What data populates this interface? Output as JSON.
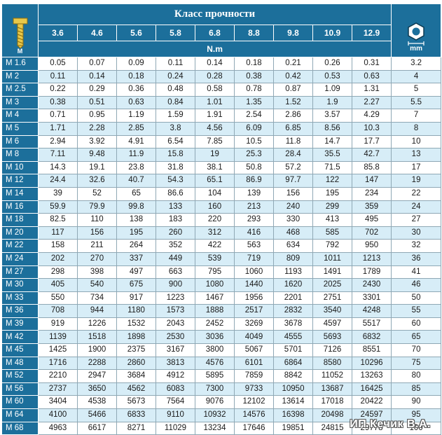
{
  "header": {
    "title": "Класс прочности",
    "unit": "N.m",
    "bolt_label": "M",
    "hex_label": "mm",
    "grades": [
      "3.6",
      "4.6",
      "5.6",
      "5.8",
      "6.8",
      "8.8",
      "9.8",
      "10.9",
      "12.9"
    ]
  },
  "rows": [
    {
      "size": "M 1.6",
      "values": [
        "0.05",
        "0.07",
        "0.09",
        "0.11",
        "0.14",
        "0.18",
        "0.21",
        "0.26",
        "0.31"
      ],
      "key": "3.2"
    },
    {
      "size": "M 2",
      "values": [
        "0.11",
        "0.14",
        "0.18",
        "0.24",
        "0.28",
        "0.38",
        "0.42",
        "0.53",
        "0.63"
      ],
      "key": "4"
    },
    {
      "size": "M 2.5",
      "values": [
        "0.22",
        "0.29",
        "0.36",
        "0.48",
        "0.58",
        "0.78",
        "0.87",
        "1.09",
        "1.31"
      ],
      "key": "5"
    },
    {
      "size": "M 3",
      "values": [
        "0.38",
        "0.51",
        "0.63",
        "0.84",
        "1.01",
        "1.35",
        "1.52",
        "1.9",
        "2.27"
      ],
      "key": "5.5"
    },
    {
      "size": "M 4",
      "values": [
        "0.71",
        "0.95",
        "1.19",
        "1.59",
        "1.91",
        "2.54",
        "2.86",
        "3.57",
        "4.29"
      ],
      "key": "7"
    },
    {
      "size": "M 5",
      "values": [
        "1.71",
        "2.28",
        "2.85",
        "3.8",
        "4.56",
        "6.09",
        "6.85",
        "8.56",
        "10.3"
      ],
      "key": "8"
    },
    {
      "size": "M 6",
      "values": [
        "2.94",
        "3.92",
        "4.91",
        "6.54",
        "7.85",
        "10.5",
        "11.8",
        "14.7",
        "17.7"
      ],
      "key": "10"
    },
    {
      "size": "M 8",
      "values": [
        "7.11",
        "9.48",
        "11.9",
        "15.8",
        "19",
        "25.3",
        "28.4",
        "35.5",
        "42.7"
      ],
      "key": "13"
    },
    {
      "size": "M 10",
      "values": [
        "14.3",
        "19.1",
        "23.8",
        "31.8",
        "38.1",
        "50.8",
        "57.2",
        "71.5",
        "85.8"
      ],
      "key": "17"
    },
    {
      "size": "M 12",
      "values": [
        "24.4",
        "32.6",
        "40.7",
        "54.3",
        "65.1",
        "86.9",
        "97.7",
        "122",
        "147"
      ],
      "key": "19"
    },
    {
      "size": "M 14",
      "values": [
        "39",
        "52",
        "65",
        "86.6",
        "104",
        "139",
        "156",
        "195",
        "234"
      ],
      "key": "22"
    },
    {
      "size": "M 16",
      "values": [
        "59.9",
        "79.9",
        "99.8",
        "133",
        "160",
        "213",
        "240",
        "299",
        "359"
      ],
      "key": "24"
    },
    {
      "size": "M 18",
      "values": [
        "82.5",
        "110",
        "138",
        "183",
        "220",
        "293",
        "330",
        "413",
        "495"
      ],
      "key": "27"
    },
    {
      "size": "M 20",
      "values": [
        "117",
        "156",
        "195",
        "260",
        "312",
        "416",
        "468",
        "585",
        "702"
      ],
      "key": "30"
    },
    {
      "size": "M 22",
      "values": [
        "158",
        "211",
        "264",
        "352",
        "422",
        "563",
        "634",
        "792",
        "950"
      ],
      "key": "32"
    },
    {
      "size": "M 24",
      "values": [
        "202",
        "270",
        "337",
        "449",
        "539",
        "719",
        "809",
        "1011",
        "1213"
      ],
      "key": "36"
    },
    {
      "size": "M 27",
      "values": [
        "298",
        "398",
        "497",
        "663",
        "795",
        "1060",
        "1193",
        "1491",
        "1789"
      ],
      "key": "41"
    },
    {
      "size": "M 30",
      "values": [
        "405",
        "540",
        "675",
        "900",
        "1080",
        "1440",
        "1620",
        "2025",
        "2430"
      ],
      "key": "46"
    },
    {
      "size": "M 33",
      "values": [
        "550",
        "734",
        "917",
        "1223",
        "1467",
        "1956",
        "2201",
        "2751",
        "3301"
      ],
      "key": "50"
    },
    {
      "size": "M 36",
      "values": [
        "708",
        "944",
        "1180",
        "1573",
        "1888",
        "2517",
        "2832",
        "3540",
        "4248"
      ],
      "key": "55"
    },
    {
      "size": "M 39",
      "values": [
        "919",
        "1226",
        "1532",
        "2043",
        "2452",
        "3269",
        "3678",
        "4597",
        "5517"
      ],
      "key": "60"
    },
    {
      "size": "M 42",
      "values": [
        "1139",
        "1518",
        "1898",
        "2530",
        "3036",
        "4049",
        "4555",
        "5693",
        "6832"
      ],
      "key": "65"
    },
    {
      "size": "M 45",
      "values": [
        "1425",
        "1900",
        "2375",
        "3167",
        "3800",
        "5067",
        "5701",
        "7126",
        "8551"
      ],
      "key": "70"
    },
    {
      "size": "M 48",
      "values": [
        "1716",
        "2288",
        "2860",
        "3813",
        "4576",
        "6101",
        "6864",
        "8580",
        "10296"
      ],
      "key": "75"
    },
    {
      "size": "M 52",
      "values": [
        "2210",
        "2947",
        "3684",
        "4912",
        "5895",
        "7859",
        "8842",
        "11052",
        "13263"
      ],
      "key": "80"
    },
    {
      "size": "M 56",
      "values": [
        "2737",
        "3650",
        "4562",
        "6083",
        "7300",
        "9733",
        "10950",
        "13687",
        "16425"
      ],
      "key": "85"
    },
    {
      "size": "M 60",
      "values": [
        "3404",
        "4538",
        "5673",
        "7564",
        "9076",
        "12102",
        "13614",
        "17018",
        "20422"
      ],
      "key": "90"
    },
    {
      "size": "M 64",
      "values": [
        "4100",
        "5466",
        "6833",
        "9110",
        "10932",
        "14576",
        "16398",
        "20498",
        "24597"
      ],
      "key": "95"
    },
    {
      "size": "M 68",
      "values": [
        "4963",
        "6617",
        "8271",
        "11029",
        "13234",
        "17646",
        "19851",
        "24815",
        "29778"
      ],
      "key": "100"
    }
  ],
  "watermark": "ИП Кечик В.А."
}
